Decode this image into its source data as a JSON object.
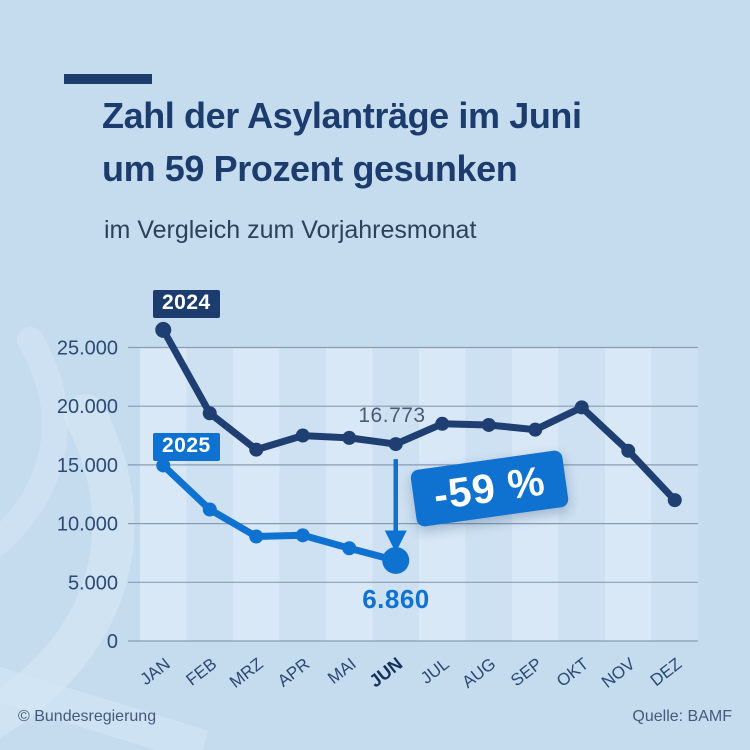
{
  "header": {
    "title_line1": "Zahl der Asylanträge im Juni",
    "title_line2": "um 59 Prozent gesunken",
    "subtitle": "im Vergleich zum Vorjahresmonat"
  },
  "annotations": {
    "jun_2024_value": "16.773",
    "jun_2025_value": "6.860",
    "percent_change": "-59 %"
  },
  "footer": {
    "copyright": "© Bundesregierung",
    "source": "Quelle: BAMF"
  },
  "colors": {
    "background": "#c5dcef",
    "plot_base": "#cde1f2",
    "stripe_light": "#d8e8f7",
    "navy": "#1f3f72",
    "blue": "#0f72d1",
    "gridline": "#8a9cb1",
    "axis_text": "#2c4a74",
    "axis_text_highlight": "#14305c",
    "annotation_gray": "#4b5c74",
    "footer_text": "#45597b"
  },
  "chart_data": {
    "type": "line",
    "title": "Zahl der Asylanträge im Juni um 59 Prozent gesunken",
    "subtitle": "im Vergleich zum Vorjahresmonat",
    "xlabel": "",
    "ylabel": "",
    "categories": [
      "JAN",
      "FEB",
      "MRZ",
      "APR",
      "MAI",
      "JUN",
      "JUL",
      "AUG",
      "SEP",
      "OKT",
      "NOV",
      "DEZ"
    ],
    "highlight_category": "JUN",
    "series": [
      {
        "name": "2024",
        "values": [
          26500,
          19400,
          16300,
          17500,
          17300,
          16773,
          18500,
          18400,
          18000,
          19900,
          16200,
          12000
        ]
      },
      {
        "name": "2025",
        "values": [
          14950,
          11200,
          8900,
          9000,
          7900,
          6860
        ]
      }
    ],
    "labeled_points": [
      {
        "series": "2024",
        "category": "JUN",
        "value": 16773,
        "label": "16.773"
      },
      {
        "series": "2025",
        "category": "JUN",
        "value": 6860,
        "label": "6.860"
      }
    ],
    "yticks": [
      {
        "label": "25.000",
        "value": 25000
      },
      {
        "label": "20.000",
        "value": 20000
      },
      {
        "label": "15.000",
        "value": 15000
      },
      {
        "label": "10.000",
        "value": 10000
      },
      {
        "label": "5.000",
        "value": 5000
      },
      {
        "label": "0",
        "value": 0
      }
    ],
    "ylim": [
      0,
      27500
    ],
    "grid": true,
    "legend": "inline-badges"
  }
}
